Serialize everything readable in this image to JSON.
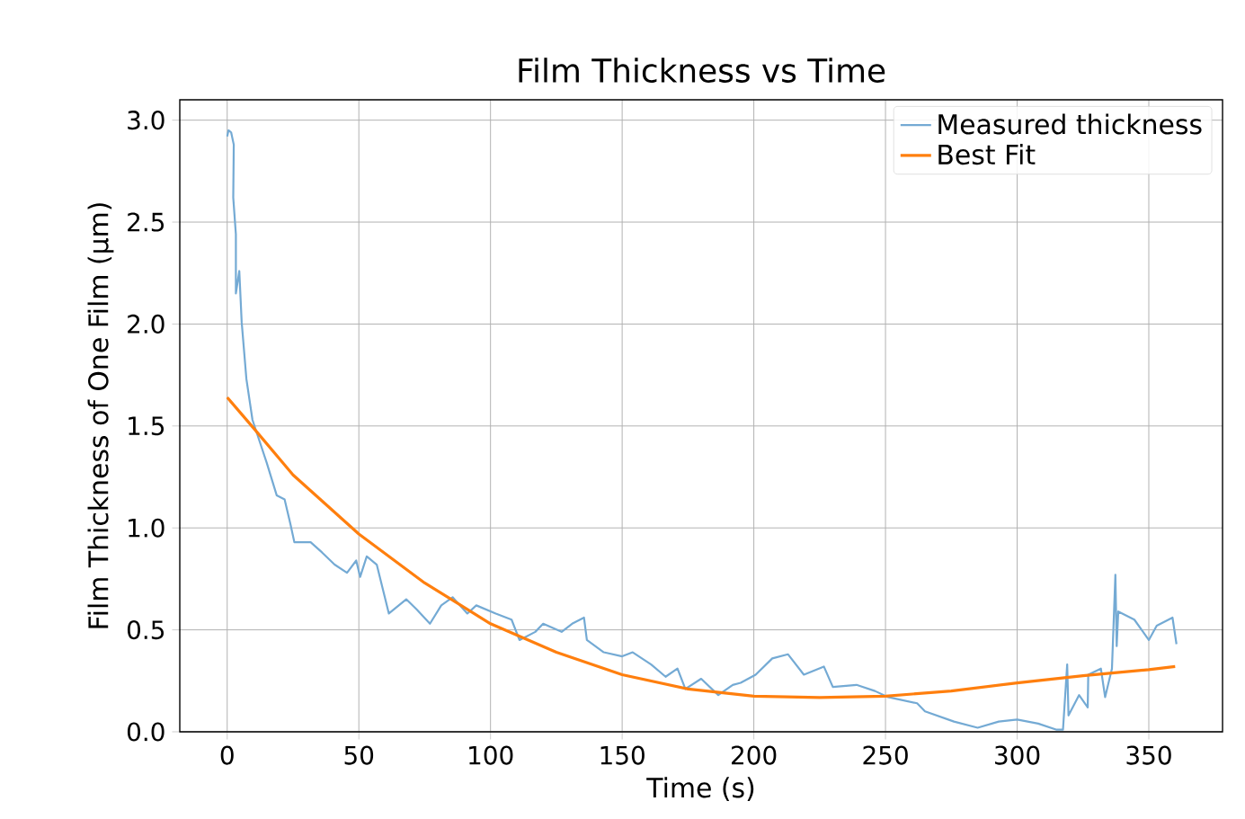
{
  "chart_data": {
    "type": "line",
    "title": "Film Thickness vs Time",
    "xlabel": "Time (s)",
    "ylabel": "Film Thickness of One Film (µm)",
    "xlim": [
      -18,
      378
    ],
    "ylim": [
      0,
      3.1
    ],
    "xticks": [
      0,
      50,
      100,
      150,
      200,
      250,
      300,
      350
    ],
    "yticks": [
      {
        "value": 0,
        "label": "0.0"
      },
      0.5,
      {
        "value": 1,
        "label": "1.0"
      },
      1.5,
      {
        "value": 2,
        "label": "2.0"
      },
      2.5,
      {
        "value": 3,
        "label": "3.0"
      }
    ],
    "grid": true,
    "legend": "top right",
    "series": [
      {
        "name": "Measured thickness",
        "color": "#74aad4",
        "x": [
          0,
          0.5,
          1.5,
          2.5,
          2.3,
          3.3,
          3.3,
          4.6,
          5.5,
          7.3,
          9.6,
          15,
          18.8,
          21.8,
          24,
          25.5,
          31.7,
          36,
          40.8,
          45.5,
          49,
          50.5,
          53,
          56.8,
          61.4,
          68,
          72,
          77,
          81.3,
          85.6,
          91.2,
          94.6,
          102,
          108,
          111,
          117,
          120,
          127,
          131,
          135.5,
          136.6,
          143,
          150,
          154,
          161,
          166.5,
          171,
          174,
          180,
          186.5,
          192,
          195,
          200.7,
          207,
          213,
          219,
          226.6,
          230,
          239,
          246,
          251,
          262,
          265,
          276,
          285,
          293,
          300,
          308,
          315,
          317.4,
          319,
          319.5,
          323.5,
          326.8,
          327,
          331.8,
          333.4,
          336,
          337.3,
          337.8,
          338.4,
          344.5,
          350,
          353,
          359,
          360.5
        ],
        "values": [
          2.92,
          2.95,
          2.94,
          2.88,
          2.62,
          2.44,
          2.15,
          2.26,
          2.01,
          1.73,
          1.53,
          1.32,
          1.16,
          1.14,
          1.02,
          0.93,
          0.93,
          0.88,
          0.82,
          0.78,
          0.84,
          0.76,
          0.86,
          0.82,
          0.58,
          0.65,
          0.6,
          0.53,
          0.62,
          0.66,
          0.58,
          0.62,
          0.58,
          0.55,
          0.45,
          0.49,
          0.53,
          0.49,
          0.53,
          0.56,
          0.45,
          0.39,
          0.37,
          0.39,
          0.33,
          0.27,
          0.31,
          0.21,
          0.26,
          0.18,
          0.23,
          0.24,
          0.28,
          0.36,
          0.38,
          0.28,
          0.32,
          0.22,
          0.23,
          0.2,
          0.17,
          0.14,
          0.1,
          0.05,
          0.02,
          0.05,
          0.06,
          0.04,
          0.01,
          0.01,
          0.33,
          0.08,
          0.18,
          0.12,
          0.28,
          0.31,
          0.17,
          0.31,
          0.77,
          0.42,
          0.59,
          0.55,
          0.45,
          0.52,
          0.56,
          0.43
        ]
      },
      {
        "name": "Best Fit",
        "color": "#ff7f0e",
        "x": [
          0,
          10,
          25,
          50,
          75,
          100,
          125,
          150,
          175,
          200,
          225,
          250,
          275,
          300,
          325,
          350,
          360
        ],
        "values": [
          1.64,
          1.49,
          1.26,
          0.97,
          0.73,
          0.53,
          0.39,
          0.28,
          0.21,
          0.175,
          0.168,
          0.175,
          0.2,
          0.24,
          0.275,
          0.305,
          0.32
        ]
      }
    ]
  }
}
